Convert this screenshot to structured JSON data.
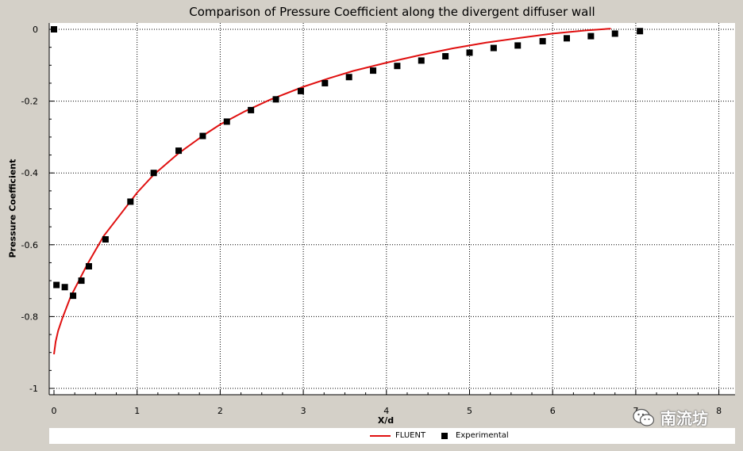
{
  "chart_data": {
    "type": "scatter",
    "title": "Comparison of Pressure Coefficient along the divergent diffuser wall",
    "xlabel": "X/d",
    "ylabel": "Pressure Coefficient",
    "xlim": [
      0,
      8
    ],
    "ylim": [
      -1,
      0
    ],
    "x_ticks": [
      0,
      1,
      2,
      3,
      4,
      5,
      6,
      7,
      8
    ],
    "y_ticks": [
      0,
      -0.2,
      -0.4,
      -0.6,
      -0.8,
      -1
    ],
    "grid": true,
    "legend_position": "bottom",
    "series": [
      {
        "name": "FLUENT",
        "kind": "line",
        "color": "#e01010",
        "x": [
          0.0,
          0.02,
          0.05,
          0.1,
          0.15,
          0.2,
          0.3,
          0.4,
          0.5,
          0.6,
          0.8,
          1.0,
          1.2,
          1.5,
          1.8,
          2.0,
          2.3,
          2.6,
          3.0,
          3.3,
          3.6,
          4.0,
          4.4,
          4.8,
          5.2,
          5.6,
          6.0,
          6.4,
          6.7
        ],
        "y": [
          -0.905,
          -0.87,
          -0.84,
          -0.805,
          -0.775,
          -0.745,
          -0.7,
          -0.655,
          -0.615,
          -0.575,
          -0.515,
          -0.455,
          -0.405,
          -0.345,
          -0.295,
          -0.265,
          -0.228,
          -0.196,
          -0.16,
          -0.137,
          -0.116,
          -0.093,
          -0.072,
          -0.053,
          -0.037,
          -0.024,
          -0.012,
          -0.003,
          0.002
        ]
      },
      {
        "name": "Experimental",
        "kind": "marker",
        "color": "#000000",
        "x": [
          0.0,
          0.03,
          0.13,
          0.23,
          0.33,
          0.42,
          0.62,
          0.92,
          1.2,
          1.5,
          1.79,
          2.08,
          2.37,
          2.67,
          2.97,
          3.26,
          3.55,
          3.84,
          4.13,
          4.42,
          4.71,
          5.0,
          5.29,
          5.58,
          5.88,
          6.17,
          6.46,
          6.75,
          7.05
        ],
        "y": [
          0.0,
          -0.712,
          -0.718,
          -0.742,
          -0.7,
          -0.66,
          -0.585,
          -0.48,
          -0.4,
          -0.338,
          -0.297,
          -0.257,
          -0.225,
          -0.195,
          -0.172,
          -0.15,
          -0.133,
          -0.115,
          -0.102,
          -0.087,
          -0.075,
          -0.065,
          -0.052,
          -0.045,
          -0.033,
          -0.025,
          -0.019,
          -0.012,
          -0.005
        ]
      }
    ]
  },
  "watermark": {
    "text": "南流坊",
    "icon": "wechat-icon"
  }
}
